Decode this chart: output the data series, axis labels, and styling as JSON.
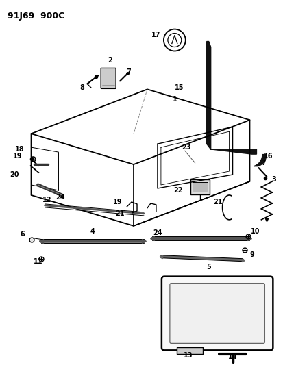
{
  "title": "91J69  900C",
  "bg": "#ffffff",
  "lc": "#000000",
  "fig_w": 4.14,
  "fig_h": 5.33,
  "dpi": 100
}
